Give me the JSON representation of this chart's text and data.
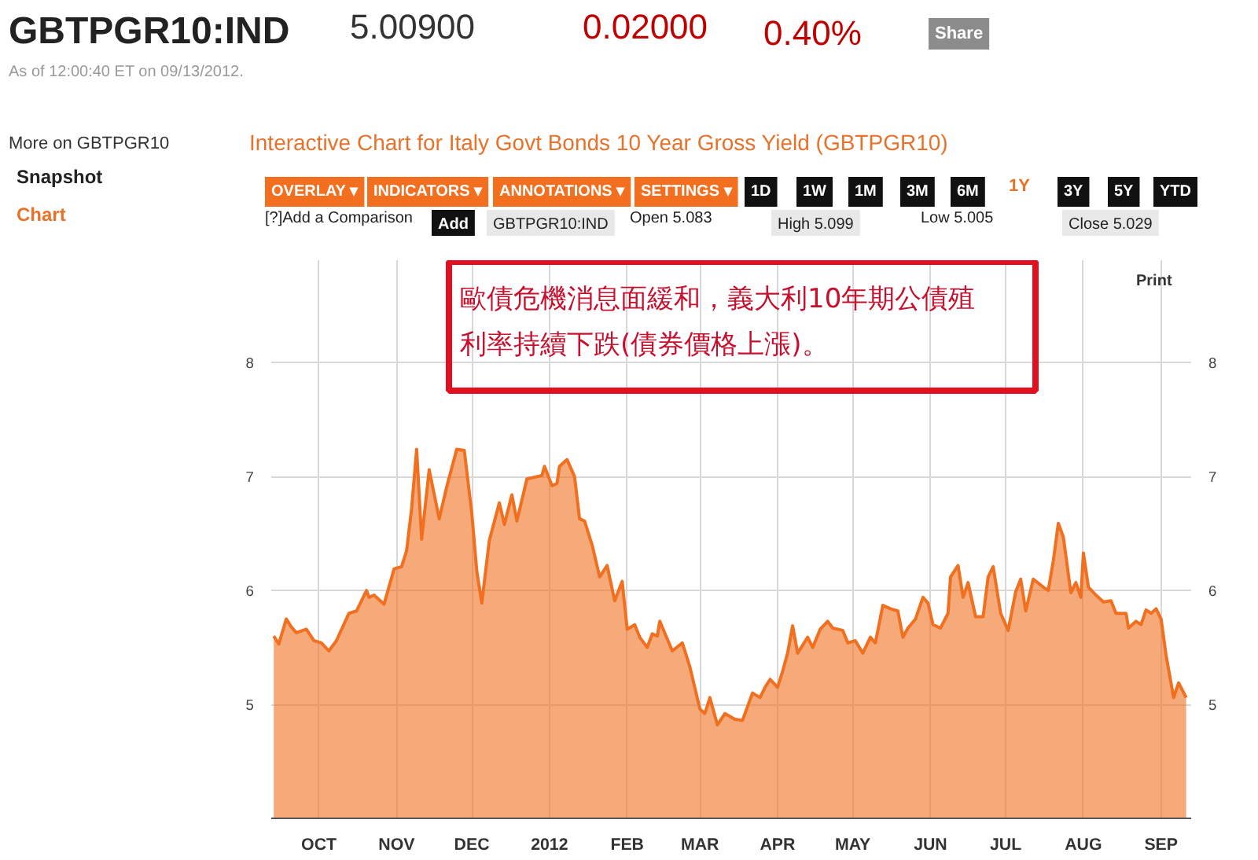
{
  "chart_data": {
    "type": "area",
    "title": "Interactive Chart for Italy Govt Bonds 10 Year Gross Yield (GBTPGR10)",
    "x": [
      "2011-09-13",
      "2011-09-15",
      "2011-09-18",
      "2011-09-20",
      "2011-09-22",
      "2011-09-26",
      "2011-09-29",
      "2011-10-02",
      "2011-10-05",
      "2011-10-08",
      "2011-10-13",
      "2011-10-16",
      "2011-10-20",
      "2011-10-21",
      "2011-10-23",
      "2011-10-27",
      "2011-10-31",
      "2011-11-03",
      "2011-11-05",
      "2011-11-07",
      "2011-11-09",
      "2011-11-11",
      "2011-11-14",
      "2011-11-18",
      "2011-11-21",
      "2011-11-25",
      "2011-11-28",
      "2011-12-01",
      "2011-12-03",
      "2011-12-05",
      "2011-12-08",
      "2011-12-12",
      "2011-12-14",
      "2011-12-17",
      "2011-12-19",
      "2011-12-23",
      "2011-12-29",
      "2011-12-30",
      "2012-01-02",
      "2012-01-04",
      "2012-01-05",
      "2012-01-08",
      "2012-01-11",
      "2012-01-13",
      "2012-01-15",
      "2012-01-18",
      "2012-01-21",
      "2012-01-24",
      "2012-01-27",
      "2012-01-30",
      "2012-02-01",
      "2012-02-04",
      "2012-02-06",
      "2012-02-09",
      "2012-02-11",
      "2012-02-13",
      "2012-02-14",
      "2012-02-19",
      "2012-02-23",
      "2012-02-26",
      "2012-03-01",
      "2012-03-03",
      "2012-03-05",
      "2012-03-08",
      "2012-03-11",
      "2012-03-15",
      "2012-03-18",
      "2012-03-22",
      "2012-03-25",
      "2012-03-27",
      "2012-03-29",
      "2012-04-01",
      "2012-04-03",
      "2012-04-05",
      "2012-04-07",
      "2012-04-09",
      "2012-04-13",
      "2012-04-15",
      "2012-04-18",
      "2012-04-21",
      "2012-04-23",
      "2012-04-27",
      "2012-04-29",
      "2012-05-02",
      "2012-05-05",
      "2012-05-08",
      "2012-05-10",
      "2012-05-13",
      "2012-05-16",
      "2012-05-19",
      "2012-05-21",
      "2012-05-23",
      "2012-05-26",
      "2012-05-29",
      "2012-05-31",
      "2012-06-02",
      "2012-06-05",
      "2012-06-08",
      "2012-06-09",
      "2012-06-12",
      "2012-06-14",
      "2012-06-16",
      "2012-06-19",
      "2012-06-22",
      "2012-06-24",
      "2012-06-26",
      "2012-06-29",
      "2012-07-02",
      "2012-07-05",
      "2012-07-07",
      "2012-07-09",
      "2012-07-12",
      "2012-07-16",
      "2012-07-18",
      "2012-07-20",
      "2012-07-22",
      "2012-07-24",
      "2012-07-27",
      "2012-07-29",
      "2012-07-31",
      "2012-08-01",
      "2012-08-03",
      "2012-08-06",
      "2012-08-09",
      "2012-08-12",
      "2012-08-14",
      "2012-08-18",
      "2012-08-19",
      "2012-08-22",
      "2012-08-24",
      "2012-08-26",
      "2012-08-28",
      "2012-08-30",
      "2012-09-01",
      "2012-09-03",
      "2012-09-06",
      "2012-09-08",
      "2012-09-11"
    ],
    "series": [
      {
        "color": "#f07020",
        "values": [
          5.6,
          5.53,
          5.75,
          5.68,
          5.63,
          5.66,
          5.56,
          5.54,
          5.47,
          5.56,
          5.8,
          5.82,
          6.0,
          5.94,
          5.96,
          5.88,
          6.19,
          6.21,
          6.35,
          6.72,
          7.24,
          6.45,
          7.06,
          6.63,
          6.91,
          7.24,
          7.23,
          6.68,
          6.17,
          5.89,
          6.44,
          6.77,
          6.58,
          6.84,
          6.61,
          6.98,
          7.01,
          7.09,
          6.92,
          6.94,
          7.09,
          7.15,
          7.0,
          6.63,
          6.61,
          6.4,
          6.12,
          6.22,
          5.91,
          6.08,
          5.66,
          5.7,
          5.59,
          5.5,
          5.62,
          5.6,
          5.73,
          5.47,
          5.54,
          5.33,
          4.96,
          4.92,
          5.06,
          4.82,
          4.92,
          4.87,
          4.86,
          5.1,
          5.06,
          5.15,
          5.22,
          5.15,
          5.29,
          5.45,
          5.69,
          5.45,
          5.59,
          5.5,
          5.66,
          5.73,
          5.67,
          5.65,
          5.54,
          5.56,
          5.45,
          5.59,
          5.54,
          5.87,
          5.84,
          5.82,
          5.59,
          5.67,
          5.75,
          5.94,
          5.89,
          5.7,
          5.67,
          5.8,
          6.12,
          6.22,
          5.94,
          6.07,
          5.77,
          5.77,
          6.12,
          6.21,
          5.8,
          5.65,
          5.99,
          6.1,
          5.82,
          6.1,
          6.03,
          6.0,
          6.26,
          6.59,
          6.47,
          5.98,
          6.07,
          5.94,
          6.33,
          6.03,
          5.96,
          5.9,
          5.91,
          5.8,
          5.8,
          5.67,
          5.73,
          5.7,
          5.83,
          5.8,
          5.84,
          5.75,
          5.43,
          5.06,
          5.19,
          5.06
        ]
      }
    ],
    "xlim": [
      "2011-09-12",
      "2012-09-13"
    ],
    "xticks": [
      {
        "value": "2011-10-01",
        "label": "OCT"
      },
      {
        "value": "2011-11-01",
        "label": "NOV"
      },
      {
        "value": "2011-12-01",
        "label": "DEC"
      },
      {
        "value": "2012-01-01",
        "label": "2012"
      },
      {
        "value": "2012-02-01",
        "label": "FEB"
      },
      {
        "value": "2012-03-01",
        "label": "MAR"
      },
      {
        "value": "2012-04-01",
        "label": "APR"
      },
      {
        "value": "2012-05-01",
        "label": "MAY"
      },
      {
        "value": "2012-06-01",
        "label": "JUN"
      },
      {
        "value": "2012-07-01",
        "label": "JUL"
      },
      {
        "value": "2012-08-01",
        "label": "AUG"
      },
      {
        "value": "2012-09-01",
        "label": "SEP"
      }
    ],
    "ylim": [
      4,
      8.9
    ],
    "yticks": [
      5,
      6,
      7,
      8
    ],
    "y2lim": [
      4,
      8.9
    ],
    "y2ticks": [
      5,
      6,
      7,
      8
    ],
    "grid": true,
    "annotations": [
      "GBTPGR10:IND",
      "5.00900",
      "0.02000",
      "0.40%",
      "Share",
      "As of 12:00:40 ET on 09/13/2012.",
      "More on GBTPGR10",
      "Snapshot",
      "Chart",
      "OVERLAY ▾",
      "INDICATORS ▾",
      "ANNOTATIONS ▾",
      "SETTINGS ▾",
      "1D",
      "1W",
      "1M",
      "3M",
      "6M",
      "1Y",
      "3Y",
      "5Y",
      "YTD",
      "[?]Add a Comparison",
      "Add",
      "GBTPGR10:IND",
      "Open 5.083",
      "High 5.099",
      "Low 5.005",
      "Close 5.029",
      "Print",
      "歐債危機消息面緩和，義大利10年期公債殖",
      "利率持續下跌(債券價格上漲)。"
    ]
  }
}
